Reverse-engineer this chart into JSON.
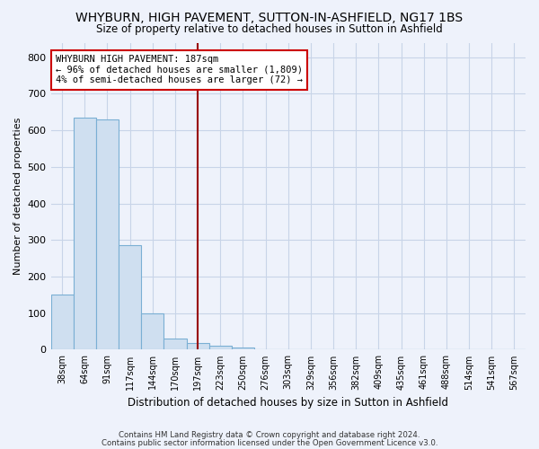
{
  "title": "WHYBURN, HIGH PAVEMENT, SUTTON-IN-ASHFIELD, NG17 1BS",
  "subtitle": "Size of property relative to detached houses in Sutton in Ashfield",
  "xlabel": "Distribution of detached houses by size in Sutton in Ashfield",
  "ylabel": "Number of detached properties",
  "categories": [
    "38sqm",
    "64sqm",
    "91sqm",
    "117sqm",
    "144sqm",
    "170sqm",
    "197sqm",
    "223sqm",
    "250sqm",
    "276sqm",
    "303sqm",
    "329sqm",
    "356sqm",
    "382sqm",
    "409sqm",
    "435sqm",
    "461sqm",
    "488sqm",
    "514sqm",
    "541sqm",
    "567sqm"
  ],
  "values": [
    150,
    635,
    630,
    285,
    100,
    30,
    18,
    12,
    5,
    2,
    1,
    0,
    0,
    0,
    0,
    0,
    0,
    0,
    0,
    0,
    1
  ],
  "bar_color": "#cfdff0",
  "bar_edge_color": "#7aafd4",
  "marker_index": 6,
  "marker_color": "#990000",
  "annotation_line1": "WHYBURN HIGH PAVEMENT: 187sqm",
  "annotation_line2": "← 96% of detached houses are smaller (1,809)",
  "annotation_line3": "4% of semi-detached houses are larger (72) →",
  "annotation_box_color": "#ffffff",
  "annotation_box_edge": "#cc0000",
  "ylim": [
    0,
    840
  ],
  "yticks": [
    0,
    100,
    200,
    300,
    400,
    500,
    600,
    700,
    800
  ],
  "grid_color": "#c8d4e8",
  "bg_color": "#eef2fb",
  "title_fontsize": 10,
  "subtitle_fontsize": 8.5,
  "footer1": "Contains HM Land Registry data © Crown copyright and database right 2024.",
  "footer2": "Contains public sector information licensed under the Open Government Licence v3.0."
}
